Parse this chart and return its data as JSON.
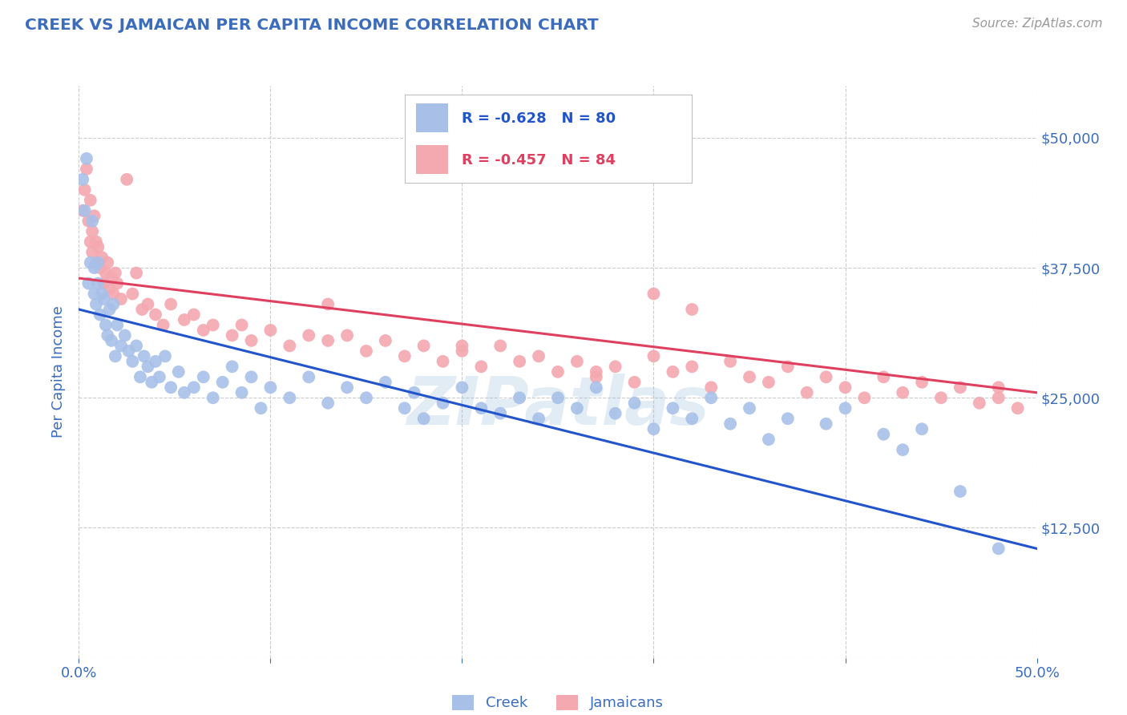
{
  "title": "CREEK VS JAMAICAN PER CAPITA INCOME CORRELATION CHART",
  "source": "Source: ZipAtlas.com",
  "ylabel": "Per Capita Income",
  "xlim": [
    0.0,
    0.5
  ],
  "ylim": [
    0,
    55000
  ],
  "yticks": [
    0,
    12500,
    25000,
    37500,
    50000
  ],
  "ytick_labels": [
    "",
    "$12,500",
    "$25,000",
    "$37,500",
    "$50,000"
  ],
  "xticks": [
    0.0,
    0.1,
    0.2,
    0.3,
    0.4,
    0.5
  ],
  "xtick_labels": [
    "0.0%",
    "",
    "",
    "",
    "",
    "50.0%"
  ],
  "title_color": "#3c6dbc",
  "axis_color": "#3c6dbc",
  "source_color": "#999999",
  "grid_color": "#cccccc",
  "background_color": "#ffffff",
  "creek_color": "#a8c0e8",
  "jamaican_color": "#f4a8b0",
  "creek_line_color": "#2255cc",
  "jamaican_line_color": "#e04060",
  "creek_r": "-0.628",
  "creek_n": "80",
  "jamaican_r": "-0.457",
  "jamaican_n": "84",
  "watermark": "ZIPatlas",
  "creek_x": [
    0.002,
    0.003,
    0.004,
    0.005,
    0.006,
    0.007,
    0.008,
    0.008,
    0.009,
    0.01,
    0.01,
    0.011,
    0.012,
    0.013,
    0.014,
    0.015,
    0.016,
    0.017,
    0.018,
    0.019,
    0.02,
    0.022,
    0.024,
    0.026,
    0.028,
    0.03,
    0.032,
    0.034,
    0.036,
    0.038,
    0.04,
    0.042,
    0.045,
    0.048,
    0.052,
    0.055,
    0.06,
    0.065,
    0.07,
    0.075,
    0.08,
    0.085,
    0.09,
    0.095,
    0.1,
    0.11,
    0.12,
    0.13,
    0.14,
    0.15,
    0.16,
    0.17,
    0.175,
    0.18,
    0.19,
    0.2,
    0.21,
    0.22,
    0.23,
    0.24,
    0.25,
    0.26,
    0.27,
    0.28,
    0.29,
    0.3,
    0.31,
    0.32,
    0.33,
    0.34,
    0.35,
    0.36,
    0.37,
    0.39,
    0.4,
    0.42,
    0.43,
    0.44,
    0.46,
    0.48
  ],
  "creek_y": [
    46000,
    43000,
    48000,
    36000,
    38000,
    42000,
    35000,
    37500,
    34000,
    36000,
    38000,
    33000,
    35000,
    34500,
    32000,
    31000,
    33500,
    30500,
    34000,
    29000,
    32000,
    30000,
    31000,
    29500,
    28500,
    30000,
    27000,
    29000,
    28000,
    26500,
    28500,
    27000,
    29000,
    26000,
    27500,
    25500,
    26000,
    27000,
    25000,
    26500,
    28000,
    25500,
    27000,
    24000,
    26000,
    25000,
    27000,
    24500,
    26000,
    25000,
    26500,
    24000,
    25500,
    23000,
    24500,
    26000,
    24000,
    23500,
    25000,
    23000,
    25000,
    24000,
    26000,
    23500,
    24500,
    22000,
    24000,
    23000,
    25000,
    22500,
    24000,
    21000,
    23000,
    22500,
    24000,
    21500,
    20000,
    22000,
    16000,
    10500
  ],
  "jamaican_x": [
    0.002,
    0.003,
    0.004,
    0.005,
    0.006,
    0.006,
    0.007,
    0.007,
    0.008,
    0.009,
    0.009,
    0.01,
    0.011,
    0.012,
    0.013,
    0.014,
    0.015,
    0.016,
    0.017,
    0.018,
    0.019,
    0.02,
    0.022,
    0.025,
    0.028,
    0.03,
    0.033,
    0.036,
    0.04,
    0.044,
    0.048,
    0.055,
    0.06,
    0.065,
    0.07,
    0.08,
    0.085,
    0.09,
    0.1,
    0.11,
    0.12,
    0.13,
    0.14,
    0.15,
    0.16,
    0.17,
    0.18,
    0.19,
    0.2,
    0.21,
    0.22,
    0.23,
    0.24,
    0.25,
    0.26,
    0.27,
    0.28,
    0.29,
    0.3,
    0.31,
    0.32,
    0.33,
    0.34,
    0.35,
    0.36,
    0.37,
    0.38,
    0.39,
    0.4,
    0.41,
    0.42,
    0.43,
    0.44,
    0.45,
    0.46,
    0.47,
    0.48,
    0.49,
    0.3,
    0.32,
    0.13,
    0.2,
    0.27,
    0.48
  ],
  "jamaican_y": [
    43000,
    45000,
    47000,
    42000,
    40000,
    44000,
    41000,
    39000,
    42500,
    38000,
    40000,
    39500,
    37500,
    38500,
    36000,
    37000,
    38000,
    35500,
    36500,
    35000,
    37000,
    36000,
    34500,
    46000,
    35000,
    37000,
    33500,
    34000,
    33000,
    32000,
    34000,
    32500,
    33000,
    31500,
    32000,
    31000,
    32000,
    30500,
    31500,
    30000,
    31000,
    30500,
    31000,
    29500,
    30500,
    29000,
    30000,
    28500,
    29500,
    28000,
    30000,
    28500,
    29000,
    27500,
    28500,
    27000,
    28000,
    26500,
    29000,
    27500,
    28000,
    26000,
    28500,
    27000,
    26500,
    28000,
    25500,
    27000,
    26000,
    25000,
    27000,
    25500,
    26500,
    25000,
    26000,
    24500,
    26000,
    24000,
    35000,
    33500,
    34000,
    30000,
    27500,
    25000
  ],
  "creek_slope": -46000,
  "creek_intercept": 33500,
  "jamaican_slope": -22000,
  "jamaican_intercept": 36500
}
